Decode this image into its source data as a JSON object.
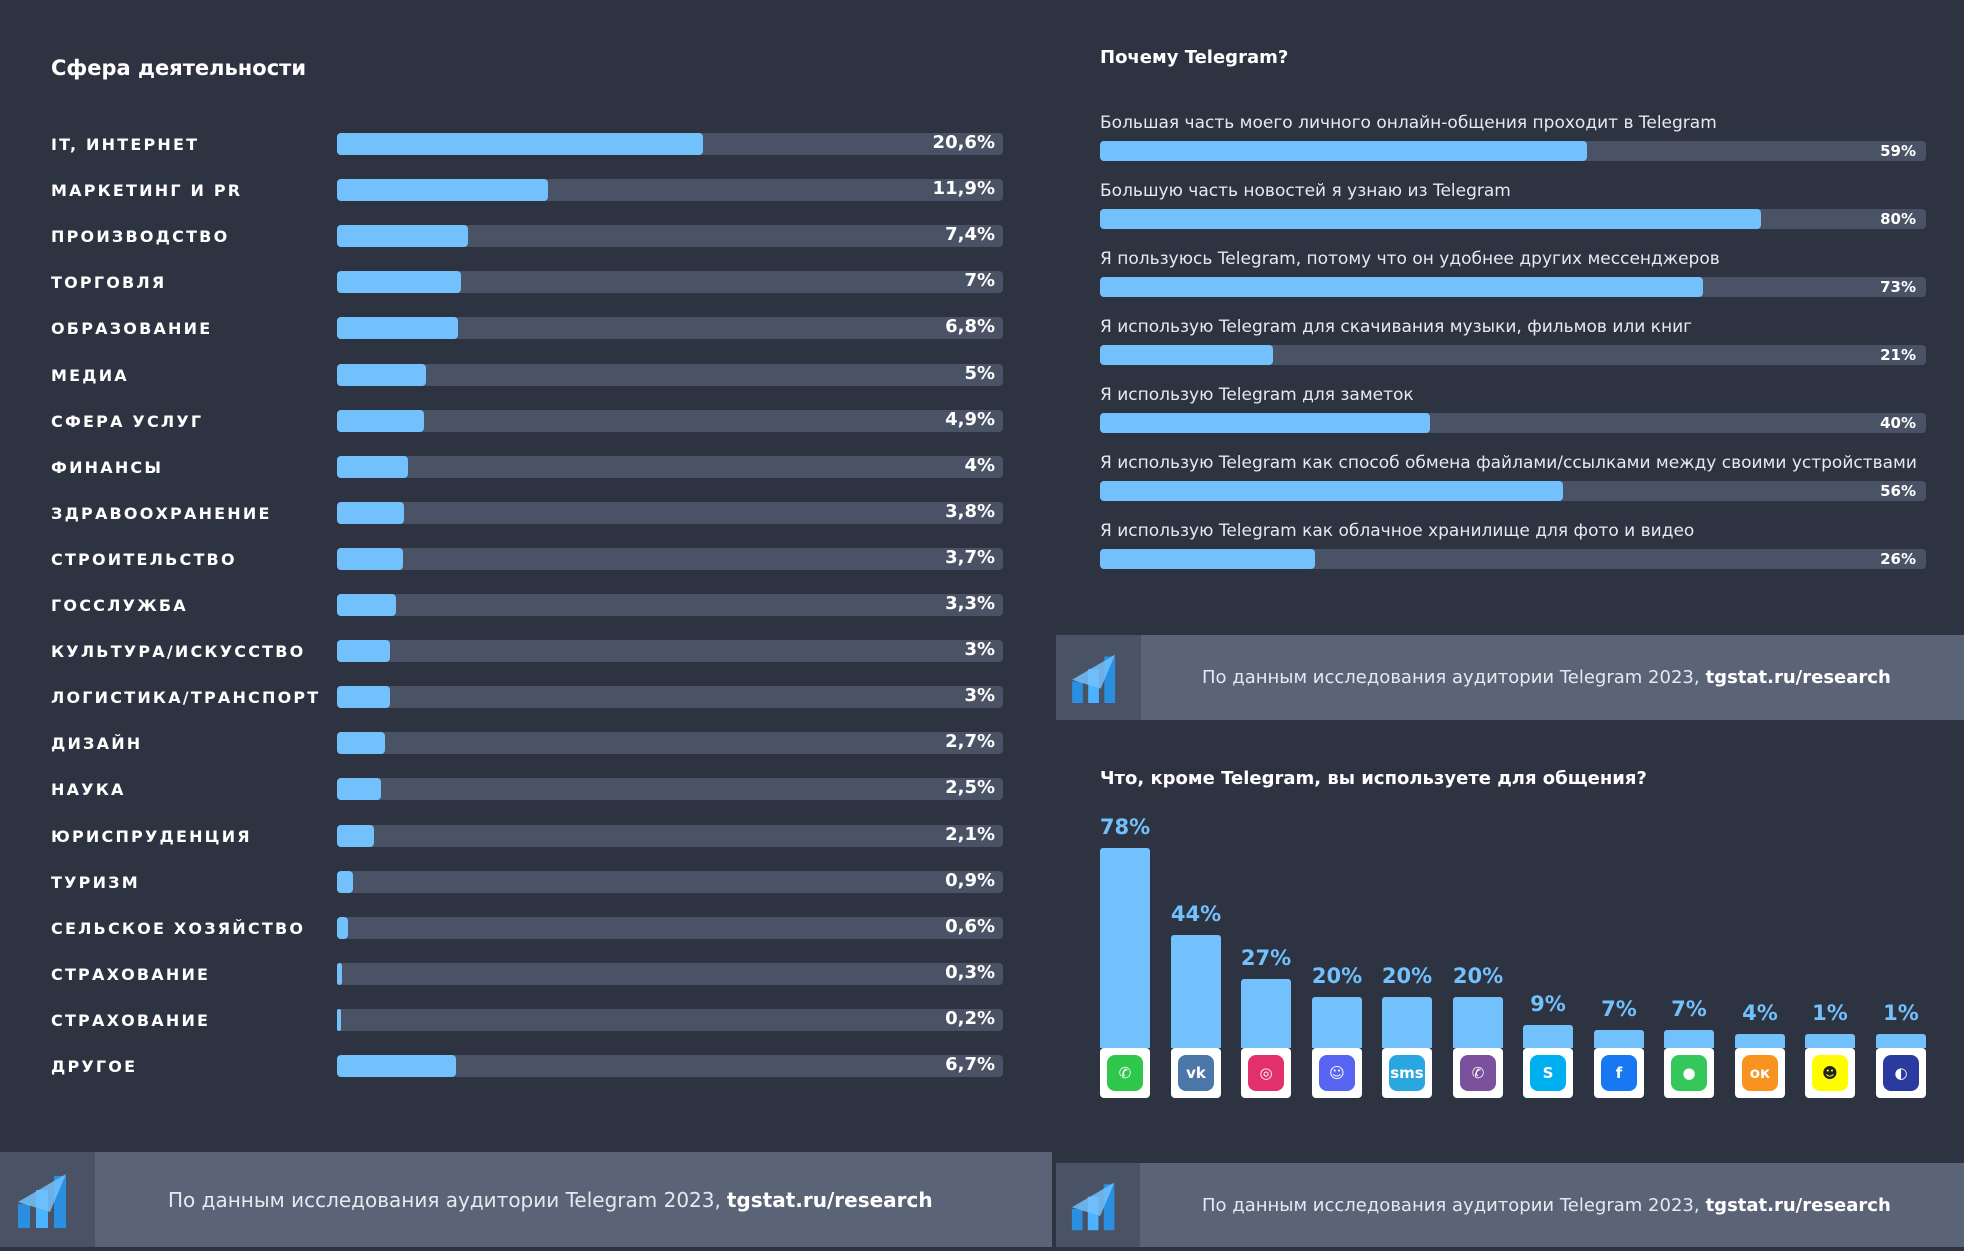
{
  "left": {
    "title": "Сфера деятельности",
    "footer": {
      "text": "По данным исследования аудитории Telegram 2023,",
      "link": "tgstat.ru/research"
    }
  },
  "colors": {
    "bg": "#2e3342",
    "track": "#4a5366",
    "accent": "#72c1fc",
    "footer": "#5b6477"
  },
  "chart_data": [
    {
      "type": "bar",
      "orientation": "horizontal",
      "title": "Сфера деятельности",
      "categories": [
        "IT, ИНТЕРНЕТ",
        "МАРКЕТИНГ И PR",
        "ПРОИЗВОДСТВО",
        "ТОРГОВЛЯ",
        "ОБРАЗОВАНИЕ",
        "МЕДИА",
        "СФЕРА УСЛУГ",
        "ФИНАНСЫ",
        "ЗДРАВООХРАНЕНИЕ",
        "СТРОИТЕЛЬСТВО",
        "ГОССЛУЖБА",
        "КУЛЬТУРА/ИСКУССТВО",
        "ЛОГИСТИКА/ТРАНСПОРТ",
        "ДИЗАЙН",
        "НАУКА",
        "ЮРИСПРУДЕНЦИЯ",
        "ТУРИЗМ",
        "СЕЛЬСКОЕ ХОЗЯЙСТВО",
        "СТРАХОВАНИЕ",
        "СТРАХОВАНИЕ",
        "ДРУГОЕ"
      ],
      "values": [
        20.6,
        11.9,
        7.4,
        7,
        6.8,
        5,
        4.9,
        4,
        3.8,
        3.7,
        3.3,
        3,
        3,
        2.7,
        2.5,
        2.1,
        0.9,
        0.6,
        0.3,
        0.2,
        6.7
      ],
      "labels": [
        "20,6%",
        "11,9%",
        "7,4%",
        "7%",
        "6,8%",
        "5%",
        "4,9%",
        "4%",
        "3,8%",
        "3,7%",
        "3,3%",
        "3%",
        "3%",
        "2,7%",
        "2,5%",
        "2,1%",
        "0,9%",
        "0,6%",
        "0,3%",
        "0,2%",
        "6,7%"
      ],
      "xlim": [
        0,
        37.5
      ]
    },
    {
      "type": "bar",
      "orientation": "horizontal",
      "title": "Почему Telegram?",
      "categories": [
        "Большая часть моего личного онлайн-общения проходит в Telegram",
        "Большую часть новостей я узнаю из Telegram",
        "Я пользуюсь Telegram, потому что он удобнее других мессенджеров",
        "Я использую Telegram для скачивания музыки, фильмов или книг",
        "Я использую Telegram для заметок",
        "Я использую Telegram как способ обмена файлами/ссылками между своими устройствами",
        "Я использую Telegram как облачное хранилище для фото и видео"
      ],
      "values": [
        59,
        80,
        73,
        21,
        40,
        56,
        26
      ],
      "labels": [
        "59%",
        "80%",
        "73%",
        "21%",
        "40%",
        "56%",
        "26%"
      ],
      "xlim": [
        0,
        100
      ]
    },
    {
      "type": "bar",
      "orientation": "vertical",
      "title": "Что, кроме Telegram, вы используете для общения?",
      "categories": [
        "WhatsApp",
        "VK",
        "Instagram",
        "Discord",
        "SMS",
        "Viber",
        "Skype",
        "Facebook",
        "iMessage",
        "Одноклассники",
        "Snapchat",
        "Другое"
      ],
      "values": [
        78,
        44,
        27,
        20,
        20,
        20,
        9,
        7,
        7,
        4,
        1,
        1
      ],
      "labels": [
        "78%",
        "44%",
        "27%",
        "20%",
        "20%",
        "20%",
        "9%",
        "7%",
        "7%",
        "4%",
        "1%",
        "1%"
      ],
      "ylim": [
        0,
        78
      ]
    }
  ],
  "right_top": {
    "title": "Почему Telegram?",
    "footer": {
      "text": "По данным исследования аудитории Telegram 2023,",
      "link": "tgstat.ru/research"
    }
  },
  "right_bottom": {
    "title": "Что, кроме Telegram, вы используете для общения?",
    "icons": [
      {
        "name": "whatsapp-icon",
        "glyph": "✆",
        "color": "#2fc84d"
      },
      {
        "name": "vk-icon",
        "glyph": "vk",
        "color": "#4a76a8"
      },
      {
        "name": "instagram-icon",
        "glyph": "◎",
        "color": "#e1306c"
      },
      {
        "name": "discord-icon",
        "glyph": "☺",
        "color": "#5865f2"
      },
      {
        "name": "sms-icon",
        "glyph": "sms",
        "color": "#2aa7e0"
      },
      {
        "name": "viber-icon",
        "glyph": "✆",
        "color": "#7b519d"
      },
      {
        "name": "skype-icon",
        "glyph": "S",
        "color": "#00aff0"
      },
      {
        "name": "facebook-icon",
        "glyph": "f",
        "color": "#1877f2"
      },
      {
        "name": "imessage-icon",
        "glyph": "●",
        "color": "#34c759"
      },
      {
        "name": "odnoklassniki-icon",
        "glyph": "ок",
        "color": "#f7931e"
      },
      {
        "name": "snapchat-icon",
        "glyph": "☻",
        "color": "#fffc00"
      },
      {
        "name": "other-app-icon",
        "glyph": "◐",
        "color": "#2b3a9e"
      }
    ],
    "footer": {
      "text": "По данным исследования аудитории Telegram 2023,",
      "link": "tgstat.ru/research"
    }
  }
}
